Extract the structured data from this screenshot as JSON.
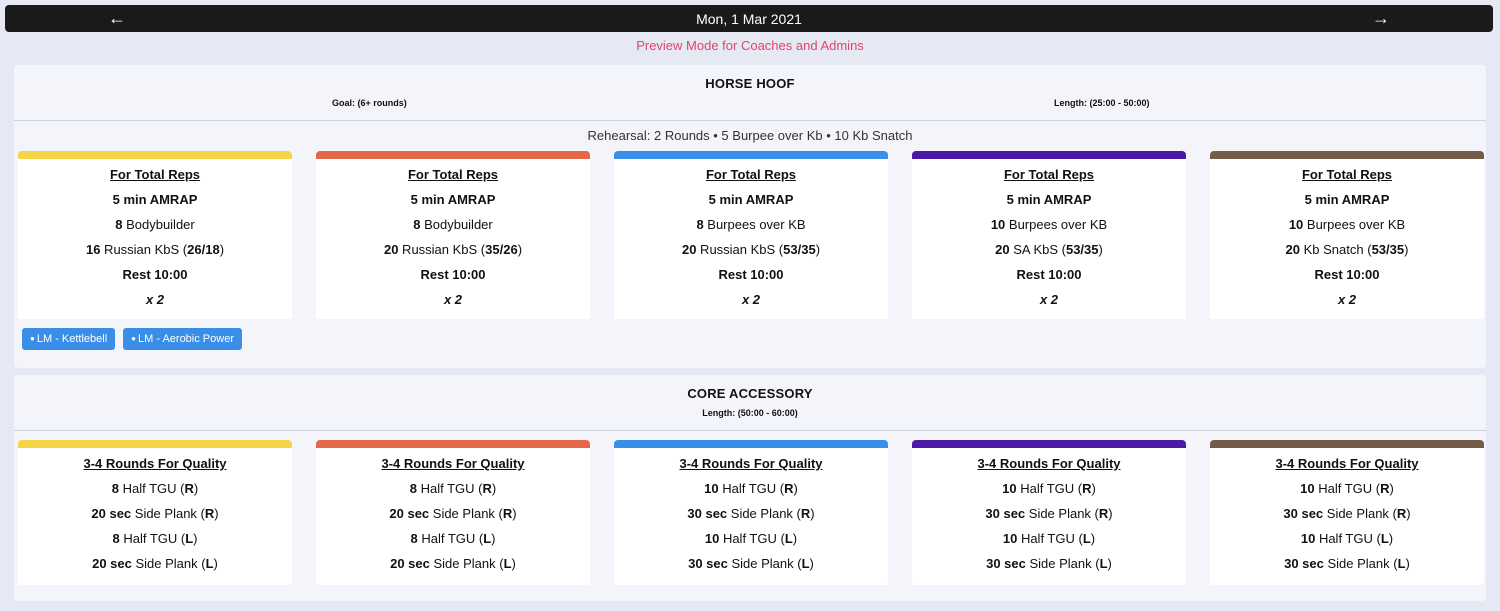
{
  "nav": {
    "date": "Mon, 1 Mar 2021",
    "prev_glyph": "🡐",
    "next_glyph": "🡒"
  },
  "preview_text": "Preview Mode for Coaches and Admins",
  "colors": [
    "#f5d547",
    "#e6684b",
    "#3b8ee8",
    "#4a1aa6",
    "#735d48"
  ],
  "section1": {
    "title": "HORSE HOOF",
    "goal": "Goal: (6+ rounds)",
    "length": "Length: (25:00 - 50:00)",
    "rehearsal": "Rehearsal: 2 Rounds • 5 Burpee over Kb • 10 Kb Snatch",
    "cards": [
      {
        "title": "For Total Reps",
        "format": "5 min AMRAP",
        "lines": [
          {
            "num": "8",
            "text": " Bodybuilder",
            "suffix": "",
            "load": ""
          },
          {
            "num": "16",
            "text": " Russian KbS (",
            "load": "26/18",
            "suffix": ")"
          }
        ],
        "rest": "Rest 10:00",
        "mult": "x 2"
      },
      {
        "title": "For Total Reps",
        "format": "5 min AMRAP",
        "lines": [
          {
            "num": "8",
            "text": " Bodybuilder",
            "suffix": "",
            "load": ""
          },
          {
            "num": "20",
            "text": " Russian KbS (",
            "load": "35/26",
            "suffix": ")"
          }
        ],
        "rest": "Rest 10:00",
        "mult": "x 2"
      },
      {
        "title": "For Total Reps",
        "format": "5 min AMRAP",
        "lines": [
          {
            "num": "8",
            "text": " Burpees over KB",
            "suffix": "",
            "load": ""
          },
          {
            "num": "20",
            "text": " Russian KbS (",
            "load": "53/35",
            "suffix": ")"
          }
        ],
        "rest": "Rest 10:00",
        "mult": "x 2"
      },
      {
        "title": "For Total Reps",
        "format": "5 min AMRAP",
        "lines": [
          {
            "num": "10",
            "text": " Burpees over KB",
            "suffix": "",
            "load": ""
          },
          {
            "num": "20",
            "text": " SA KbS (",
            "load": "53/35",
            "suffix": ")"
          }
        ],
        "rest": "Rest 10:00",
        "mult": "x 2"
      },
      {
        "title": "For Total Reps",
        "format": "5 min AMRAP",
        "lines": [
          {
            "num": "10",
            "text": " Burpees over KB",
            "suffix": "",
            "load": ""
          },
          {
            "num": "20",
            "text": " Kb Snatch (",
            "load": "53/35",
            "suffix": ")"
          }
        ],
        "rest": "Rest 10:00",
        "mult": "x 2"
      }
    ],
    "tags": [
      "LM - Kettlebell",
      "LM - Aerobic Power"
    ]
  },
  "section2": {
    "title": "CORE ACCESSORY",
    "length": "Length: (50:00 - 60:00)",
    "cards": [
      {
        "title": "3-4 Rounds For Quality",
        "lines": [
          {
            "num": "8",
            "text": " Half TGU (",
            "load": "R",
            "suffix": ")"
          },
          {
            "num": "20 sec",
            "text": " Side Plank (",
            "load": "R",
            "suffix": ")"
          },
          {
            "num": "8",
            "text": " Half TGU (",
            "load": "L",
            "suffix": ")"
          },
          {
            "num": "20 sec",
            "text": " Side Plank (",
            "load": "L",
            "suffix": ")"
          }
        ]
      },
      {
        "title": "3-4 Rounds For Quality",
        "lines": [
          {
            "num": "8",
            "text": " Half TGU (",
            "load": "R",
            "suffix": ")"
          },
          {
            "num": "20 sec",
            "text": " Side Plank (",
            "load": "R",
            "suffix": ")"
          },
          {
            "num": "8",
            "text": " Half TGU (",
            "load": "L",
            "suffix": ")"
          },
          {
            "num": "20 sec",
            "text": " Side Plank (",
            "load": "L",
            "suffix": ")"
          }
        ]
      },
      {
        "title": "3-4 Rounds For Quality",
        "lines": [
          {
            "num": "10",
            "text": " Half TGU (",
            "load": "R",
            "suffix": ")"
          },
          {
            "num": "30 sec",
            "text": " Side Plank (",
            "load": "R",
            "suffix": ")"
          },
          {
            "num": "10",
            "text": " Half TGU (",
            "load": "L",
            "suffix": ")"
          },
          {
            "num": "30 sec",
            "text": " Side Plank (",
            "load": "L",
            "suffix": ")"
          }
        ]
      },
      {
        "title": "3-4 Rounds For Quality",
        "lines": [
          {
            "num": "10",
            "text": " Half TGU (",
            "load": "R",
            "suffix": ")"
          },
          {
            "num": "30 sec",
            "text": " Side Plank (",
            "load": "R",
            "suffix": ")"
          },
          {
            "num": "10",
            "text": " Half TGU (",
            "load": "L",
            "suffix": ")"
          },
          {
            "num": "30 sec",
            "text": " Side Plank (",
            "load": "L",
            "suffix": ")"
          }
        ]
      },
      {
        "title": "3-4 Rounds For Quality",
        "lines": [
          {
            "num": "10",
            "text": " Half TGU (",
            "load": "R",
            "suffix": ")"
          },
          {
            "num": "30 sec",
            "text": " Side Plank (",
            "load": "R",
            "suffix": ")"
          },
          {
            "num": "10",
            "text": " Half TGU (",
            "load": "L",
            "suffix": ")"
          },
          {
            "num": "30 sec",
            "text": " Side Plank (",
            "load": "L",
            "suffix": ")"
          }
        ]
      }
    ]
  }
}
